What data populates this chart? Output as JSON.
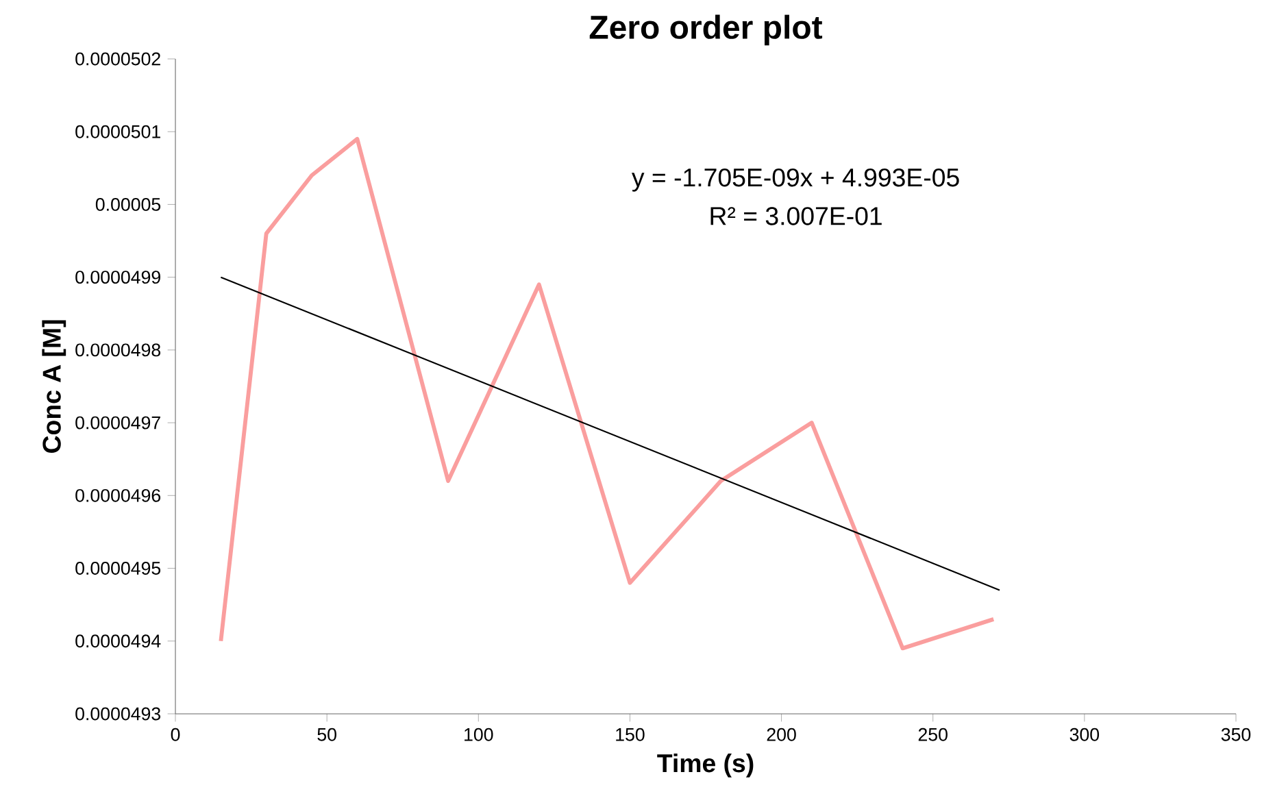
{
  "chart_data": {
    "type": "line",
    "title": "Zero order plot",
    "xlabel": "Time (s)",
    "ylabel": "Conc A [M]",
    "xlim": [
      0,
      350
    ],
    "xticks": [
      0,
      50,
      100,
      150,
      200,
      250,
      300,
      350
    ],
    "ylim": [
      4.93e-05,
      5.02e-05
    ],
    "yticks": [
      {
        "value": 4.93e-05,
        "label": "0.0000493"
      },
      {
        "value": 4.94e-05,
        "label": "0.0000494"
      },
      {
        "value": 4.95e-05,
        "label": "0.0000495"
      },
      {
        "value": 4.96e-05,
        "label": "0.0000496"
      },
      {
        "value": 4.97e-05,
        "label": "0.0000497"
      },
      {
        "value": 4.98e-05,
        "label": "0.0000498"
      },
      {
        "value": 4.99e-05,
        "label": "0.0000499"
      },
      {
        "value": 5e-05,
        "label": "0.00005"
      },
      {
        "value": 5.01e-05,
        "label": "0.0000501"
      },
      {
        "value": 5.02e-05,
        "label": "0.0000502"
      }
    ],
    "grid": false,
    "marker": "none",
    "line_style": "solid",
    "series": [
      {
        "color": "#fa9e9e",
        "x": [
          15,
          30,
          45,
          60,
          90,
          120,
          150,
          180,
          210,
          240,
          270
        ],
        "values": [
          4.94e-05,
          4.996e-05,
          5.004e-05,
          5.009e-05,
          4.962e-05,
          4.989e-05,
          4.948e-05,
          4.962e-05,
          4.97e-05,
          4.939e-05,
          4.943e-05
        ]
      },
      {
        "color": "#000000",
        "x": [
          15,
          272
        ],
        "values": [
          4.99e-05,
          4.947e-05
        ]
      }
    ],
    "annotations": [
      "y = -1.705E-09x + 4.993E-05",
      "R² = 3.007E-01"
    ]
  }
}
